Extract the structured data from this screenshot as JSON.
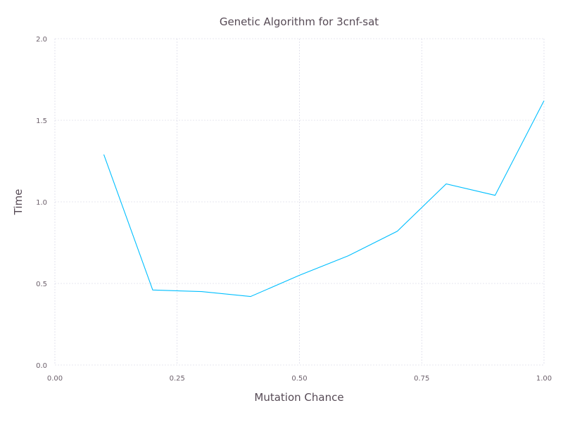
{
  "chart_data": {
    "type": "line",
    "title": "Genetic Algorithm for 3cnf-sat",
    "xlabel": "Mutation Chance",
    "ylabel": "Time",
    "xlim": [
      0,
      1
    ],
    "ylim": [
      0,
      2
    ],
    "xticks": [
      0,
      0.25,
      0.5,
      0.75,
      1
    ],
    "xtick_labels": [
      "0.00",
      "0.25",
      "0.50",
      "0.75",
      "1.00"
    ],
    "yticks": [
      0,
      0.5,
      1,
      1.5,
      2
    ],
    "ytick_labels": [
      "0.0",
      "0.5",
      "1.0",
      "1.5",
      "2.0"
    ],
    "grid": true,
    "series": [
      {
        "color": "#00bfff",
        "x": [
          0.1,
          0.2,
          0.3,
          0.4,
          0.5,
          0.6,
          0.7,
          0.8,
          0.9,
          1.0
        ],
        "y": [
          1.29,
          0.46,
          0.45,
          0.42,
          0.55,
          0.67,
          0.82,
          1.11,
          1.04,
          1.62
        ]
      }
    ]
  }
}
